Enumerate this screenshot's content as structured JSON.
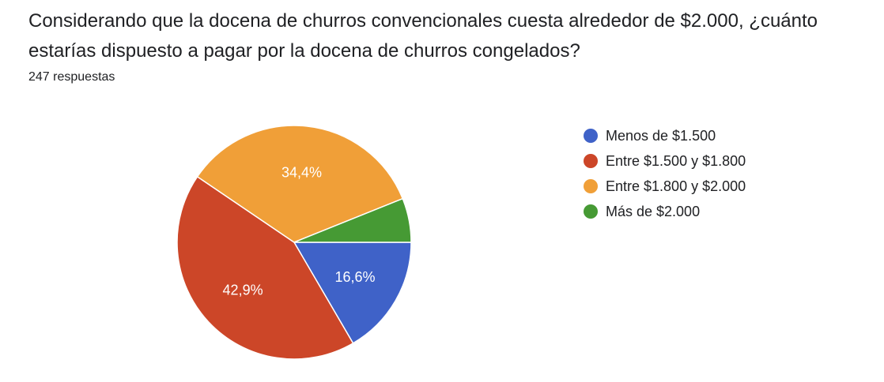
{
  "question": {
    "title": "Considerando que la docena de churros convencionales cuesta alrededor de $2.000, ¿cuánto estarías dispuesto a pagar por la docena de churros congelados?",
    "responses": "247 respuestas"
  },
  "colors": {
    "blue": "#3f62c8",
    "red": "#cc4628",
    "orange": "#f09f38",
    "green": "#469a34"
  },
  "chart_data": {
    "type": "pie",
    "start_angle_deg": 90,
    "direction": "clockwise",
    "legend_position": "right",
    "slices": [
      {
        "label": "Menos de $1.500",
        "value": 16.6,
        "value_label": "16,6%",
        "color": "#3f62c8"
      },
      {
        "label": "Entre $1.500 y $1.800",
        "value": 42.9,
        "value_label": "42,9%",
        "color": "#cc4628"
      },
      {
        "label": "Entre $1.800 y $2.000",
        "value": 34.4,
        "value_label": "34,4%",
        "color": "#f09f38"
      },
      {
        "label": "Más de $2.000",
        "value": 6.1,
        "value_label": "",
        "color": "#469a34"
      }
    ]
  }
}
